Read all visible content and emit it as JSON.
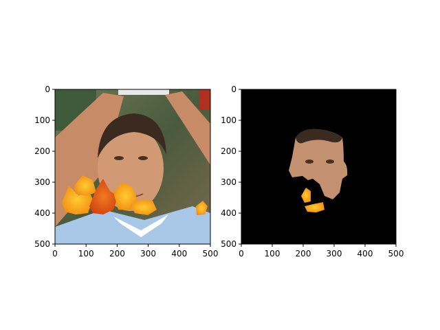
{
  "figure": {
    "background": "#ffffff",
    "axis_color": "#000000"
  },
  "chart_data": [
    {
      "type": "image",
      "title": "",
      "xlabel": "",
      "ylabel": "",
      "xlim": [
        0,
        500
      ],
      "ylim": [
        500,
        0
      ],
      "xticks": [
        0,
        100,
        200,
        300,
        400,
        500
      ],
      "yticks": [
        0,
        100,
        200,
        300,
        400,
        500
      ],
      "image_content": "photo-with-leaves",
      "grid": false
    },
    {
      "type": "image",
      "title": "",
      "xlabel": "",
      "ylabel": "",
      "xlim": [
        0,
        500
      ],
      "ylim": [
        500,
        0
      ],
      "xticks": [
        0,
        100,
        200,
        300,
        400,
        500
      ],
      "yticks": [
        0,
        100,
        200,
        300,
        400,
        500
      ],
      "image_content": "masked-face-on-black",
      "grid": false
    }
  ]
}
